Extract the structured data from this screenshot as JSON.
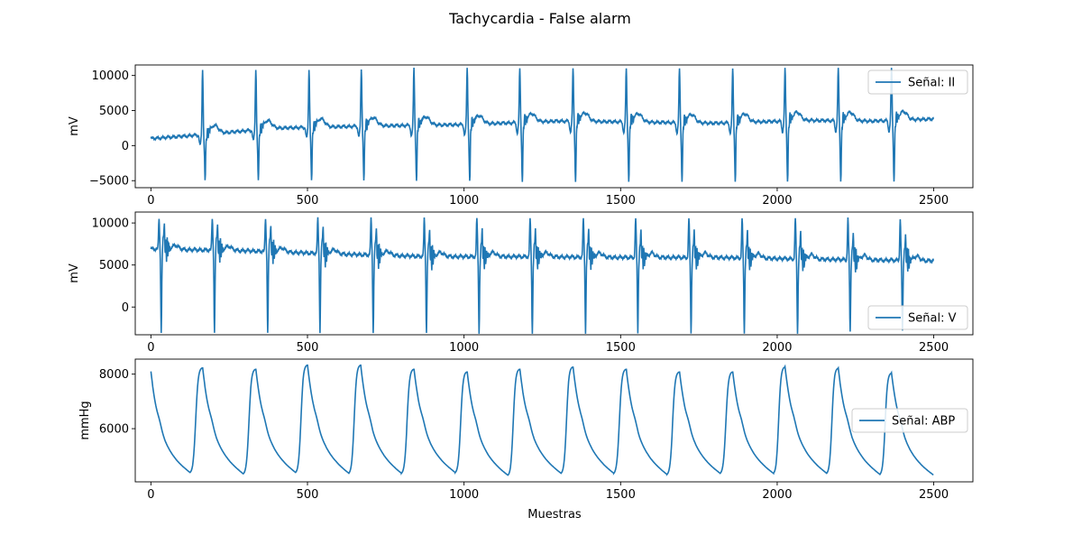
{
  "chart_data": {
    "title": "Tachycardia - False alarm",
    "xlabel": "Muestras",
    "panels": [
      {
        "type": "line",
        "ylabel": "mV",
        "legend": "Señal: II",
        "legend_loc": "upper right",
        "color": "#1f77b4",
        "x_range": [
          0,
          2500
        ],
        "ylim": [
          -6000,
          11500
        ],
        "xticks": [
          0,
          500,
          1000,
          1500,
          2000,
          2500
        ],
        "yticks": [
          -5000,
          0,
          5000,
          10000
        ],
        "ytick_labels": [
          "−5000",
          "0",
          "5000",
          "10000"
        ],
        "beats": [
          165,
          335,
          505,
          672,
          840,
          1010,
          1178,
          1348,
          1518,
          1688,
          1858,
          2025,
          2195,
          2365
        ],
        "qrs_peak": 11000,
        "qrs_trough": -4600,
        "baseline": [
          [
            0,
            1000
          ],
          [
            150,
            1500
          ],
          [
            400,
            2500
          ],
          [
            700,
            2800
          ],
          [
            1000,
            3000
          ],
          [
            1300,
            3500
          ],
          [
            1500,
            3400
          ],
          [
            1800,
            3200
          ],
          [
            2100,
            3600
          ],
          [
            2300,
            3500
          ],
          [
            2500,
            3800
          ]
        ]
      },
      {
        "type": "line",
        "ylabel": "mV",
        "legend": "Señal: V",
        "legend_loc": "lower right",
        "color": "#1f77b4",
        "x_range": [
          0,
          2500
        ],
        "ylim": [
          -3300,
          11300
        ],
        "xticks": [
          0,
          500,
          1000,
          1500,
          2000,
          2500
        ],
        "yticks": [
          0,
          5000,
          10000
        ],
        "ytick_labels": [
          "0",
          "5000",
          "10000"
        ],
        "beats": [
          33,
          203,
          373,
          540,
          710,
          880,
          1048,
          1218,
          1388,
          1555,
          1725,
          1895,
          2065,
          2233,
          2400
        ],
        "qrs_peak": 10500,
        "qrs_trough": -3000,
        "baseline": [
          [
            0,
            6900
          ],
          [
            300,
            6700
          ],
          [
            600,
            6300
          ],
          [
            900,
            6000
          ],
          [
            1200,
            6000
          ],
          [
            1500,
            5900
          ],
          [
            1800,
            5900
          ],
          [
            2100,
            5700
          ],
          [
            2500,
            5500
          ]
        ]
      },
      {
        "type": "line",
        "ylabel": "mmHg",
        "legend": "Señal: ABP",
        "legend_loc": "center right",
        "color": "#1f77b4",
        "x_range": [
          0,
          2500
        ],
        "ylim": [
          4050,
          8550
        ],
        "xticks": [
          0,
          500,
          1000,
          1500,
          2000,
          2500
        ],
        "yticks": [
          6000,
          8000
        ],
        "ytick_labels": [
          "6000",
          "8000"
        ],
        "peaks": [
          [
            0,
            8100
          ],
          [
            165,
            8250
          ],
          [
            335,
            8200
          ],
          [
            500,
            8350
          ],
          [
            670,
            8350
          ],
          [
            840,
            8200
          ],
          [
            1010,
            8100
          ],
          [
            1178,
            8200
          ],
          [
            1348,
            8280
          ],
          [
            1518,
            8200
          ],
          [
            1688,
            8100
          ],
          [
            1858,
            8100
          ],
          [
            2025,
            8280
          ],
          [
            2195,
            8230
          ],
          [
            2365,
            8050
          ]
        ],
        "troughs": [
          [
            125,
            4350
          ],
          [
            295,
            4300
          ],
          [
            462,
            4350
          ],
          [
            632,
            4320
          ],
          [
            800,
            4320
          ],
          [
            972,
            4350
          ],
          [
            1140,
            4250
          ],
          [
            1310,
            4320
          ],
          [
            1478,
            4320
          ],
          [
            1648,
            4280
          ],
          [
            1818,
            4320
          ],
          [
            1988,
            4320
          ],
          [
            2158,
            4320
          ],
          [
            2328,
            4280
          ],
          [
            2500,
            4250
          ]
        ]
      }
    ]
  }
}
